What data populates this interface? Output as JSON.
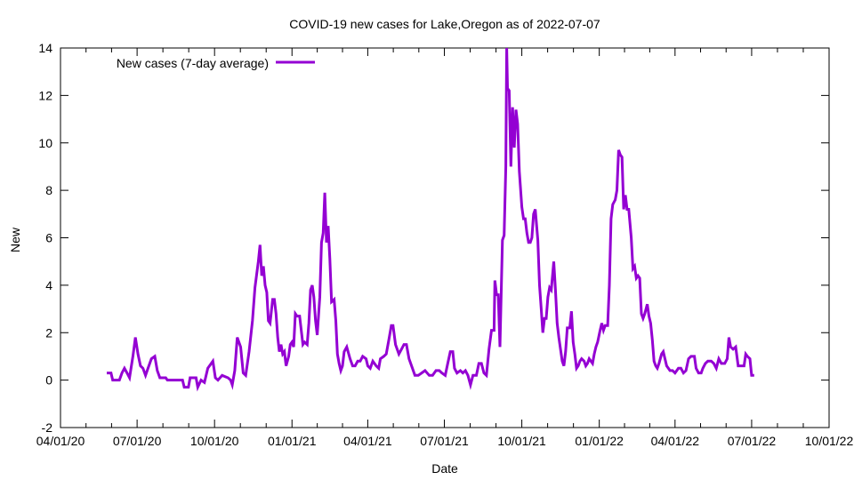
{
  "chart_data": {
    "type": "line",
    "title": "COVID-19 new cases for Lake,Oregon as of 2022-07-07",
    "xlabel": "Date",
    "ylabel": "New",
    "x_units": "days since 04/01/20",
    "xlim": [
      0,
      913
    ],
    "ylim": [
      -2,
      14
    ],
    "yticks": [
      -2,
      0,
      2,
      4,
      6,
      8,
      10,
      12,
      14
    ],
    "xticks": [
      {
        "day": 0,
        "label": "04/01/20"
      },
      {
        "day": 91,
        "label": "07/01/20"
      },
      {
        "day": 183,
        "label": "10/01/20"
      },
      {
        "day": 275,
        "label": "01/01/21"
      },
      {
        "day": 365,
        "label": "04/01/21"
      },
      {
        "day": 456,
        "label": "07/01/21"
      },
      {
        "day": 548,
        "label": "10/01/21"
      },
      {
        "day": 640,
        "label": "01/01/22"
      },
      {
        "day": 730,
        "label": "04/01/22"
      },
      {
        "day": 821,
        "label": "07/01/22"
      },
      {
        "day": 913,
        "label": "10/01/22"
      }
    ],
    "legend_position": "top-left",
    "grid": false,
    "series": [
      {
        "name": "New cases (7-day average)",
        "color": "#9400d3",
        "x": [
          55,
          60,
          62,
          70,
          73,
          76,
          79,
          82,
          86,
          89,
          92,
          95,
          98,
          101,
          104,
          108,
          112,
          115,
          118,
          125,
          127,
          145,
          147,
          152,
          154,
          161,
          163,
          167,
          171,
          175,
          181,
          184,
          187,
          192,
          199,
          202,
          204,
          207,
          210,
          214,
          217,
          220,
          224,
          228,
          231,
          235,
          237,
          239,
          241,
          243,
          245,
          247,
          249,
          252,
          254,
          256,
          258,
          260,
          262,
          264,
          266,
          268,
          271,
          273,
          275,
          277,
          279,
          281,
          284,
          288,
          290,
          293,
          295,
          297,
          299,
          301,
          303,
          305,
          308,
          310,
          312,
          314,
          316,
          318,
          320,
          322,
          325,
          327,
          329,
          331,
          333,
          335,
          337,
          340,
          344,
          347,
          350,
          353,
          356,
          359,
          363,
          365,
          368,
          371,
          375,
          378,
          380,
          384,
          387,
          390,
          393,
          395,
          398,
          402,
          405,
          408,
          411,
          414,
          418,
          421,
          425,
          429,
          433,
          438,
          442,
          446,
          450,
          453,
          457,
          460,
          463,
          466,
          468,
          471,
          475,
          478,
          481,
          484,
          487,
          490,
          494,
          497,
          500,
          503,
          506,
          509,
          512,
          515,
          516,
          518,
          520,
          522,
          525,
          527,
          529,
          530,
          531,
          533,
          535,
          537,
          539,
          541,
          543,
          545,
          548,
          550,
          552,
          554,
          556,
          558,
          560,
          562,
          564,
          567,
          569,
          571,
          573,
          575,
          577,
          579,
          581,
          583,
          586,
          588,
          590,
          592,
          594,
          596,
          598,
          600,
          602,
          605,
          607,
          609,
          611,
          613,
          615,
          617,
          619,
          622,
          624,
          626,
          628,
          630,
          632,
          634,
          636,
          638,
          641,
          643,
          645,
          647,
          650,
          652,
          654,
          656,
          659,
          661,
          663,
          665,
          667,
          669,
          671,
          673,
          675,
          678,
          680,
          682,
          684,
          686,
          688,
          690,
          692,
          694,
          697,
          699,
          701,
          703,
          705,
          707,
          709,
          711,
          714,
          716,
          718,
          720,
          722,
          724,
          727,
          730,
          734,
          737,
          740,
          743,
          746,
          749,
          753,
          755,
          758,
          761,
          763,
          766,
          769,
          773,
          776,
          779,
          782,
          785,
          789,
          792,
          794,
          796,
          799,
          802,
          805,
          808,
          812,
          814,
          816,
          819,
          821,
          824
        ],
        "y": [
          0.3,
          0.3,
          0,
          0,
          0.3,
          0.5,
          0.3,
          0.1,
          1.0,
          1.8,
          1.1,
          0.6,
          0.5,
          0.2,
          0.5,
          0.9,
          1.0,
          0.4,
          0.1,
          0.1,
          0,
          0,
          -0.3,
          -0.3,
          0.1,
          0.1,
          -0.3,
          0,
          -0.1,
          0.5,
          0.8,
          0.1,
          0,
          0.2,
          0.1,
          0.0,
          -0.2,
          0.4,
          1.8,
          1.4,
          0.3,
          0.2,
          1.2,
          2.5,
          3.9,
          5.0,
          5.7,
          4.4,
          4.8,
          4.0,
          3.7,
          2.5,
          2.4,
          3.4,
          3.4,
          2.8,
          1.8,
          1.2,
          1.5,
          1.1,
          1.2,
          0.6,
          1.0,
          1.5,
          1.6,
          1.4,
          2.8,
          2.7,
          2.7,
          1.5,
          1.6,
          1.5,
          2.4,
          3.8,
          4.0,
          3.5,
          2.5,
          1.9,
          3.5,
          5.8,
          6.2,
          7.9,
          5.8,
          6.5,
          5.1,
          3.3,
          3.4,
          2.5,
          1.1,
          0.7,
          0.4,
          0.6,
          1.2,
          1.4,
          0.9,
          0.6,
          0.6,
          0.8,
          0.8,
          1.0,
          0.9,
          0.6,
          0.5,
          0.8,
          0.6,
          0.5,
          0.9,
          1.0,
          1.1,
          1.7,
          2.3,
          2.3,
          1.5,
          1.1,
          1.3,
          1.5,
          1.5,
          0.9,
          0.5,
          0.2,
          0.2,
          0.3,
          0.4,
          0.2,
          0.2,
          0.4,
          0.4,
          0.3,
          0.2,
          0.7,
          1.2,
          1.2,
          0.5,
          0.3,
          0.4,
          0.3,
          0.4,
          0.2,
          -0.2,
          0.2,
          0.2,
          0.7,
          0.7,
          0.3,
          0.2,
          1.3,
          2.1,
          2.1,
          4.2,
          3.6,
          3.6,
          1.4,
          5.9,
          6.1,
          9.0,
          14.0,
          12.3,
          12.2,
          9.0,
          11.5,
          9.8,
          11.4,
          10.8,
          8.8,
          7.3,
          6.8,
          6.8,
          6.2,
          5.8,
          5.8,
          6.0,
          7.0,
          7.2,
          5.9,
          4.0,
          3.0,
          2.0,
          2.6,
          2.6,
          3.5,
          3.9,
          3.8,
          5.0,
          3.8,
          2.4,
          1.8,
          1.3,
          0.8,
          0.6,
          1.2,
          2.2,
          2.2,
          2.9,
          1.6,
          1.1,
          0.5,
          0.6,
          0.8,
          0.9,
          0.8,
          0.6,
          0.7,
          0.9,
          0.8,
          0.7,
          1.1,
          1.4,
          1.6,
          2.1,
          2.4,
          2.1,
          2.3,
          2.3,
          4.0,
          6.8,
          7.4,
          7.6,
          8.0,
          9.7,
          9.5,
          9.4,
          7.2,
          7.8,
          7.2,
          7.2,
          6.0,
          4.7,
          4.8,
          4.3,
          4.4,
          4.3,
          2.8,
          2.6,
          2.8,
          3.2,
          2.7,
          2.4,
          1.7,
          0.8,
          0.6,
          0.5,
          0.7,
          1.1,
          1.2,
          0.9,
          0.6,
          0.5,
          0.4,
          0.4,
          0.3,
          0.5,
          0.5,
          0.3,
          0.4,
          0.9,
          1.0,
          1.0,
          0.5,
          0.3,
          0.3,
          0.5,
          0.7,
          0.8,
          0.8,
          0.7,
          0.5,
          0.9,
          0.7,
          0.7,
          0.9,
          1.8,
          1.4,
          1.3,
          1.4,
          0.6,
          0.6,
          0.6,
          1.1,
          1.0,
          0.9,
          0.2,
          0.2
        ]
      }
    ]
  }
}
